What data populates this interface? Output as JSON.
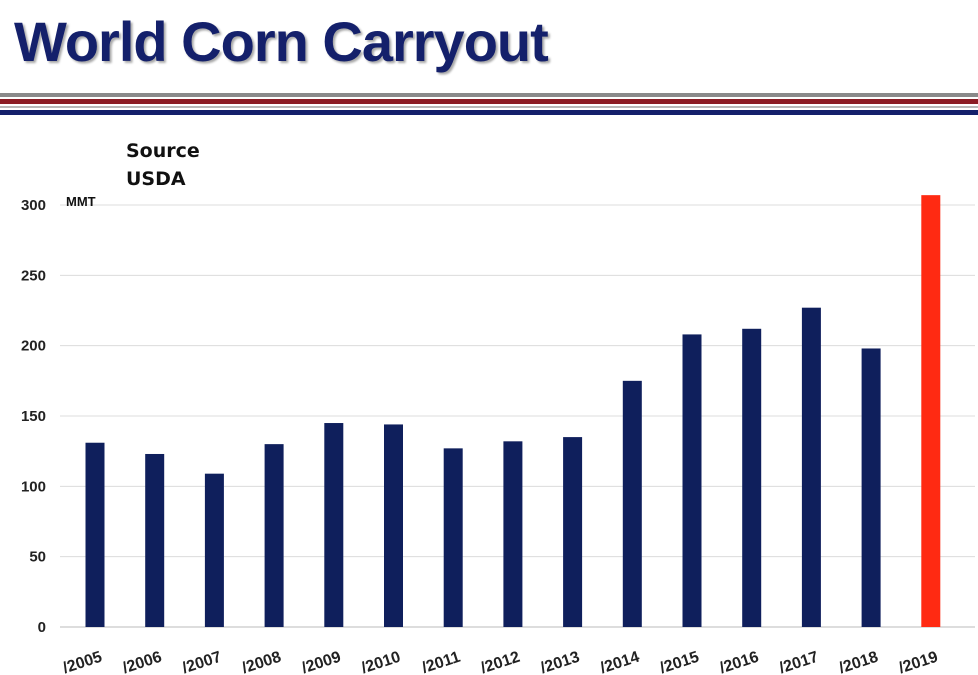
{
  "title": "World Corn Carryout",
  "source": {
    "line1": "Source",
    "line2": "USDA"
  },
  "colors": {
    "bar": "#0f1f5c",
    "highlight": "#ff2a12",
    "title": "#14206b"
  },
  "chart_data": {
    "type": "bar",
    "unit_label": "MMT",
    "categories": [
      "/2005",
      "/2006",
      "/2007",
      "/2008",
      "/2009",
      "/2010",
      "/2011",
      "/2012",
      "/2013",
      "/2014",
      "/2015",
      "/2016",
      "/2017",
      "/2018",
      "/2019"
    ],
    "values": [
      131,
      123,
      109,
      130,
      145,
      144,
      127,
      132,
      135,
      175,
      208,
      212,
      227,
      198,
      307
    ],
    "highlight_index": 14,
    "ylim": [
      0,
      300
    ],
    "yticks": [
      "0",
      "50",
      "100",
      "150",
      "200",
      "250",
      "300"
    ],
    "grid": true,
    "legend": "none"
  }
}
